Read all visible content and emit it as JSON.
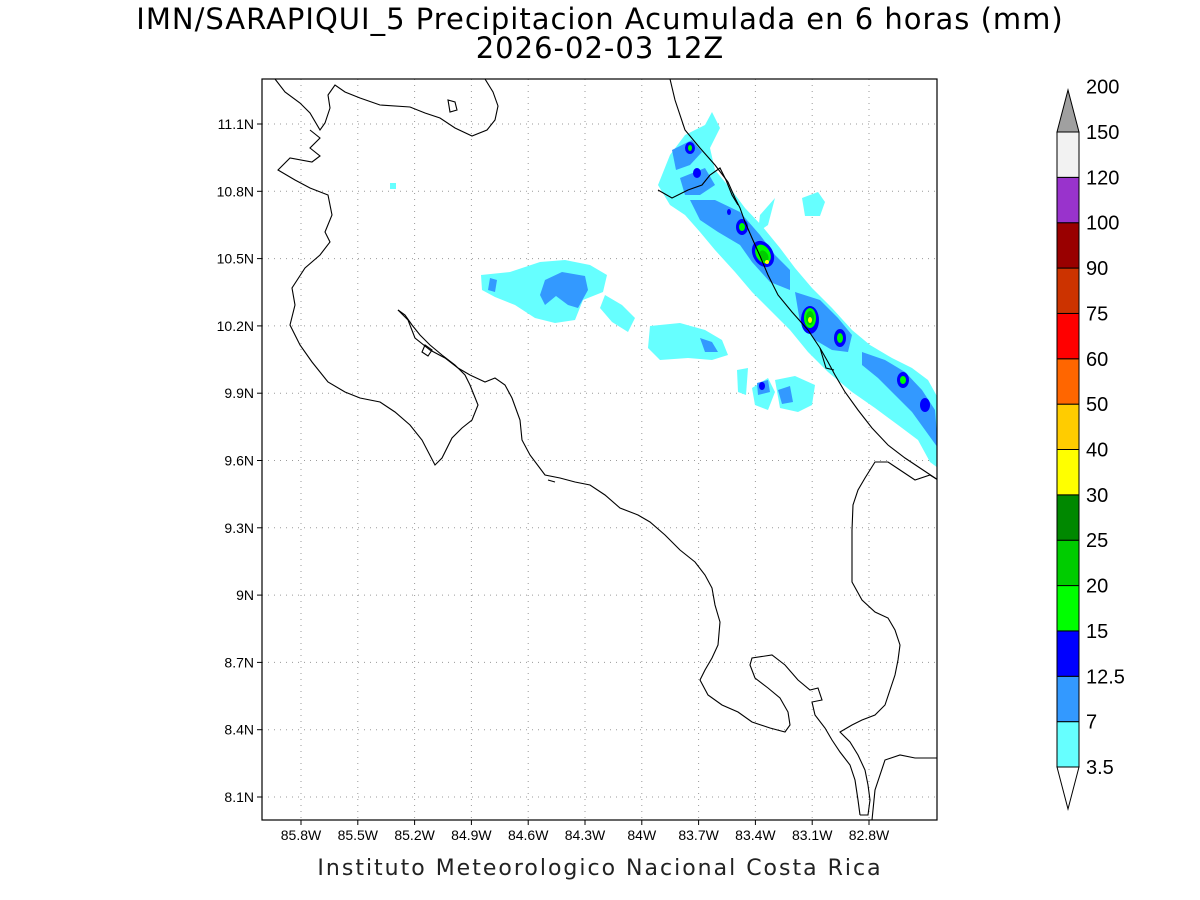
{
  "title": {
    "line1": "IMN/SARAPIQUI_5 Precipitacion Acumulada en 6 horas (mm)",
    "line2": "2026-02-03 12Z"
  },
  "credit": "Instituto Meteorologico Nacional Costa Rica",
  "map": {
    "lat_ticks": [
      "11.1N",
      "10.8N",
      "10.5N",
      "10.2N",
      "9.9N",
      "9.6N",
      "9.3N",
      "9N",
      "8.7N",
      "8.4N",
      "8.1N"
    ],
    "lon_ticks": [
      "85.8W",
      "85.5W",
      "85.2W",
      "84.9W",
      "84.6W",
      "84.3W",
      "84W",
      "83.7W",
      "83.4W",
      "83.1W",
      "82.8W"
    ],
    "grid": "dotted"
  },
  "colorbar": {
    "levels": [
      "3.5",
      "7",
      "12.5",
      "15",
      "20",
      "25",
      "30",
      "40",
      "50",
      "60",
      "75",
      "90",
      "100",
      "120",
      "150",
      "200"
    ],
    "colors": [
      "#66ffff",
      "#3399ff",
      "#0000ff",
      "#00ff00",
      "#00cc00",
      "#008800",
      "#ffff00",
      "#ffcc00",
      "#ff6600",
      "#ff0000",
      "#cc3300",
      "#990000",
      "#ff00ff",
      "#9933cc",
      "#f2f2f2",
      "#a0a0a0"
    ]
  }
}
